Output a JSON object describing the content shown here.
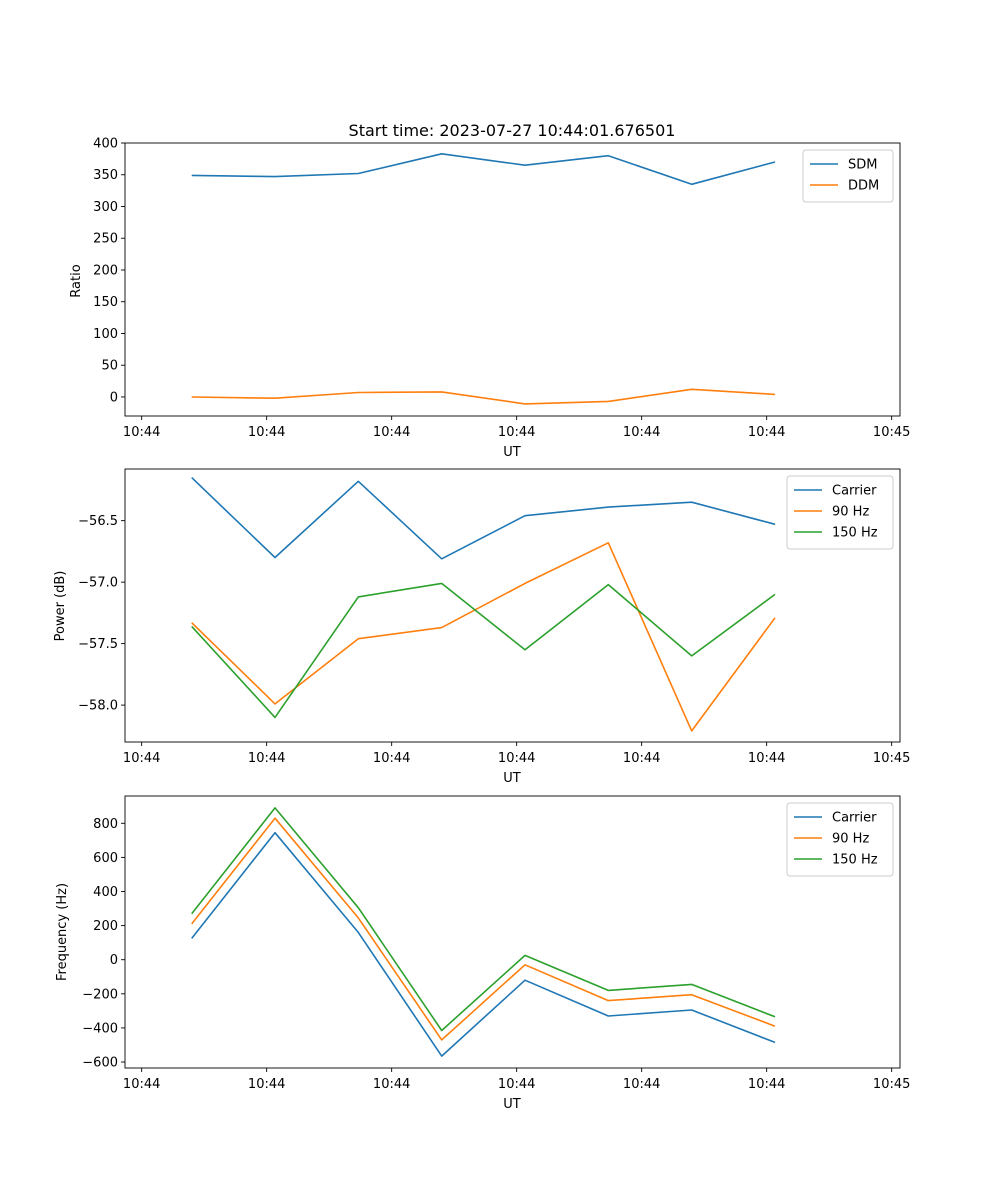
{
  "chart_data": [
    {
      "type": "line",
      "title": "Start time: 2023-07-27 10:44:01.676501",
      "xlabel": "UT",
      "ylabel": "Ratio",
      "x": [
        1,
        2,
        3,
        4,
        5,
        6,
        7,
        8
      ],
      "xlim": [
        0.2,
        9.5
      ],
      "xticks": [
        0.4,
        1.9,
        3.4,
        4.9,
        6.4,
        7.9,
        9.4
      ],
      "xtick_labels": [
        "10:44",
        "10:44",
        "10:44",
        "10:44",
        "10:44",
        "10:44",
        "10:45"
      ],
      "ylim": [
        -30,
        400
      ],
      "yticks": [
        0,
        50,
        100,
        150,
        200,
        250,
        300,
        350,
        400
      ],
      "ytick_labels": [
        "0",
        "50",
        "100",
        "150",
        "200",
        "250",
        "300",
        "350",
        "400"
      ],
      "legend_position": "top-right",
      "series": [
        {
          "name": "SDM",
          "color": "#1f77b4",
          "values": [
            349,
            347,
            352,
            383,
            365,
            380,
            335,
            370
          ]
        },
        {
          "name": "DDM",
          "color": "#ff7f0e",
          "values": [
            0,
            -2,
            7,
            8,
            -11,
            -7,
            12,
            4
          ]
        }
      ]
    },
    {
      "type": "line",
      "title": "",
      "xlabel": "UT",
      "ylabel": "Power (dB)",
      "x": [
        1,
        2,
        3,
        4,
        5,
        6,
        7,
        8
      ],
      "xlim": [
        0.2,
        9.5
      ],
      "xticks": [
        0.4,
        1.9,
        3.4,
        4.9,
        6.4,
        7.9,
        9.4
      ],
      "xtick_labels": [
        "10:44",
        "10:44",
        "10:44",
        "10:44",
        "10:44",
        "10:44",
        "10:45"
      ],
      "ylim": [
        -58.3,
        -56.08
      ],
      "yticks": [
        -58.0,
        -57.5,
        -57.0,
        -56.5
      ],
      "ytick_labels": [
        "−58.0",
        "−57.5",
        "−57.0",
        "−56.5"
      ],
      "legend_position": "top-right",
      "series": [
        {
          "name": "Carrier",
          "color": "#1f77b4",
          "values": [
            -56.15,
            -56.8,
            -56.18,
            -56.81,
            -56.46,
            -56.39,
            -56.35,
            -56.53
          ]
        },
        {
          "name": "90 Hz",
          "color": "#ff7f0e",
          "values": [
            -57.33,
            -57.99,
            -57.46,
            -57.37,
            -57.01,
            -56.68,
            -58.21,
            -57.29
          ]
        },
        {
          "name": "150 Hz",
          "color": "#2ca02c",
          "values": [
            -57.36,
            -58.1,
            -57.12,
            -57.01,
            -57.55,
            -57.02,
            -57.6,
            -57.1
          ]
        }
      ]
    },
    {
      "type": "line",
      "title": "",
      "xlabel": "UT",
      "ylabel": "Frequency (Hz)",
      "x": [
        1,
        2,
        3,
        4,
        5,
        6,
        7,
        8
      ],
      "xlim": [
        0.2,
        9.5
      ],
      "xticks": [
        0.4,
        1.9,
        3.4,
        4.9,
        6.4,
        7.9,
        9.4
      ],
      "xtick_labels": [
        "10:44",
        "10:44",
        "10:44",
        "10:44",
        "10:44",
        "10:44",
        "10:45"
      ],
      "ylim": [
        -635,
        960
      ],
      "yticks": [
        -600,
        -400,
        -200,
        0,
        200,
        400,
        600,
        800
      ],
      "ytick_labels": [
        "−600",
        "−400",
        "−200",
        "0",
        "200",
        "400",
        "600",
        "800"
      ],
      "legend_position": "top-right",
      "series": [
        {
          "name": "Carrier",
          "color": "#1f77b4",
          "values": [
            125,
            745,
            160,
            -565,
            -120,
            -330,
            -295,
            -485
          ]
        },
        {
          "name": "90 Hz",
          "color": "#ff7f0e",
          "values": [
            210,
            830,
            245,
            -470,
            -30,
            -240,
            -205,
            -390
          ]
        },
        {
          "name": "150 Hz",
          "color": "#2ca02c",
          "values": [
            270,
            890,
            305,
            -415,
            25,
            -180,
            -145,
            -335
          ]
        }
      ]
    }
  ]
}
